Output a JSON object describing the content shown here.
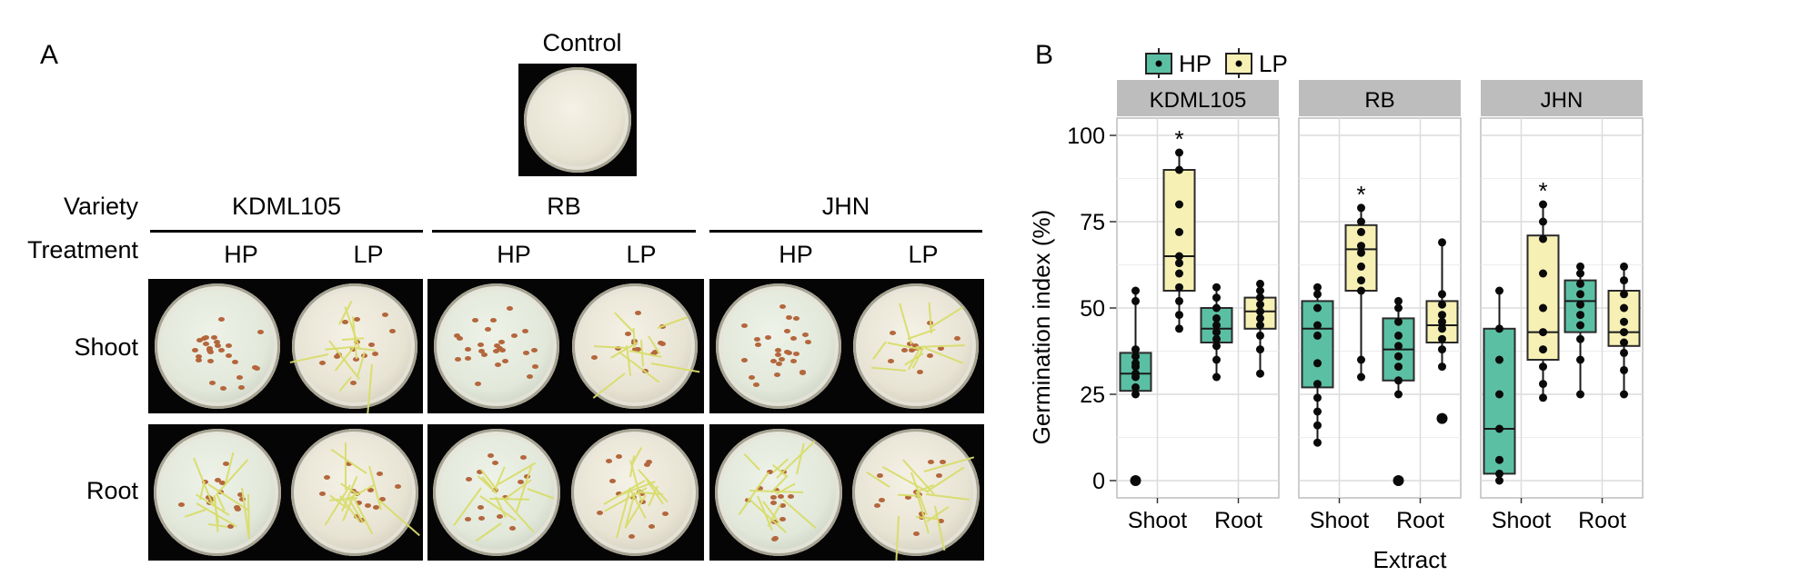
{
  "panel_a": {
    "label": "A",
    "control_label": "Control",
    "variety_label": "Variety",
    "treatment_label": "Treatment",
    "varieties": [
      "KDML105",
      "RB",
      "JHN"
    ],
    "treatments": [
      "HP",
      "LP"
    ],
    "rows": [
      "Shoot",
      "Root"
    ]
  },
  "chart_data": {
    "type": "boxplot",
    "panel_label": "B",
    "ylabel": "Germination index (%)",
    "xlabel": "Extract",
    "ylim": [
      -5,
      105
    ],
    "yticks": [
      0,
      25,
      50,
      75,
      100
    ],
    "facets": [
      "KDML105",
      "RB",
      "JHN"
    ],
    "categories": [
      "Shoot",
      "Root"
    ],
    "legend": {
      "position": "top",
      "items": [
        {
          "name": "HP",
          "color": "#5bbfa3"
        },
        {
          "name": "LP",
          "color": "#f7f0b4"
        }
      ]
    },
    "strip_color": "#bdbdbd",
    "grid": true,
    "boxes": [
      {
        "facet": "KDML105",
        "category": "Shoot",
        "series": "HP",
        "min": 25,
        "q1": 26,
        "median": 31,
        "q3": 37,
        "max": 55,
        "points": [
          0,
          25,
          27,
          30,
          31,
          33,
          34,
          36,
          38,
          52,
          55
        ],
        "star": false
      },
      {
        "facet": "KDML105",
        "category": "Shoot",
        "series": "LP",
        "min": 44,
        "q1": 55,
        "median": 65,
        "q3": 90,
        "max": 95,
        "points": [
          44,
          48,
          52,
          56,
          60,
          63,
          65,
          72,
          80,
          90,
          95
        ],
        "star": true
      },
      {
        "facet": "KDML105",
        "category": "Root",
        "series": "HP",
        "min": 30,
        "q1": 40,
        "median": 44,
        "q3": 50,
        "max": 56,
        "points": [
          30,
          35,
          39,
          41,
          43,
          45,
          47,
          50,
          53,
          56
        ],
        "star": false
      },
      {
        "facet": "KDML105",
        "category": "Root",
        "series": "LP",
        "min": 31,
        "q1": 44,
        "median": 49,
        "q3": 53,
        "max": 57,
        "points": [
          31,
          38,
          42,
          45,
          47,
          49,
          51,
          53,
          55,
          57
        ],
        "star": false
      },
      {
        "facet": "RB",
        "category": "Shoot",
        "series": "HP",
        "min": 11,
        "q1": 27,
        "median": 44,
        "q3": 52,
        "max": 56,
        "points": [
          11,
          16,
          20,
          24,
          28,
          34,
          42,
          45,
          50,
          54,
          56
        ],
        "star": false
      },
      {
        "facet": "RB",
        "category": "Shoot",
        "series": "LP",
        "min": 30,
        "q1": 55,
        "median": 67,
        "q3": 74,
        "max": 79,
        "points": [
          30,
          35,
          55,
          58,
          62,
          66,
          68,
          72,
          75,
          79
        ],
        "star": true
      },
      {
        "facet": "RB",
        "category": "Root",
        "series": "HP",
        "min": 25,
        "q1": 29,
        "median": 38,
        "q3": 47,
        "max": 52,
        "points": [
          0,
          25,
          29,
          33,
          36,
          39,
          42,
          46,
          50,
          52
        ],
        "star": false
      },
      {
        "facet": "RB",
        "category": "Root",
        "series": "LP",
        "min": 33,
        "q1": 40,
        "median": 45,
        "q3": 52,
        "max": 69,
        "points": [
          18,
          33,
          38,
          41,
          44,
          46,
          48,
          51,
          54,
          69
        ],
        "star": false
      },
      {
        "facet": "JHN",
        "category": "Shoot",
        "series": "HP",
        "min": 0,
        "q1": 2,
        "median": 15,
        "q3": 44,
        "max": 55,
        "points": [
          0,
          2,
          6,
          15,
          25,
          35,
          44,
          55
        ],
        "star": false
      },
      {
        "facet": "JHN",
        "category": "Shoot",
        "series": "LP",
        "min": 24,
        "q1": 35,
        "median": 43,
        "q3": 71,
        "max": 80,
        "points": [
          24,
          28,
          33,
          38,
          43,
          50,
          60,
          70,
          75,
          80
        ],
        "star": true
      },
      {
        "facet": "JHN",
        "category": "Root",
        "series": "HP",
        "min": 25,
        "q1": 43,
        "median": 52,
        "q3": 58,
        "max": 62,
        "points": [
          25,
          35,
          41,
          45,
          48,
          51,
          54,
          57,
          60,
          62
        ],
        "star": false
      },
      {
        "facet": "JHN",
        "category": "Root",
        "series": "LP",
        "min": 25,
        "q1": 39,
        "median": 43,
        "q3": 55,
        "max": 62,
        "points": [
          25,
          32,
          37,
          40,
          43,
          46,
          50,
          54,
          58,
          62
        ],
        "star": false
      }
    ]
  }
}
